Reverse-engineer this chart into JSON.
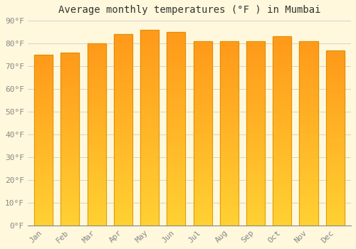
{
  "title": "Average monthly temperatures (°F ) in Mumbai",
  "months": [
    "Jan",
    "Feb",
    "Mar",
    "Apr",
    "May",
    "Jun",
    "Jul",
    "Aug",
    "Sep",
    "Oct",
    "Nov",
    "Dec"
  ],
  "values": [
    75,
    76,
    80,
    84,
    86,
    85,
    81,
    81,
    81,
    83,
    81,
    77
  ],
  "bar_color_bottom": "#FFB300",
  "bar_color_top": "#FFA040",
  "bar_edge_color": "#CC8800",
  "ylim": [
    0,
    90
  ],
  "ytick_step": 10,
  "background_color": "#FFF8DC",
  "grid_color": "#CCCCCC",
  "title_fontsize": 10,
  "tick_fontsize": 8,
  "tick_label_color": "#888888",
  "title_color": "#333333",
  "font_family": "monospace",
  "bar_width": 0.7
}
